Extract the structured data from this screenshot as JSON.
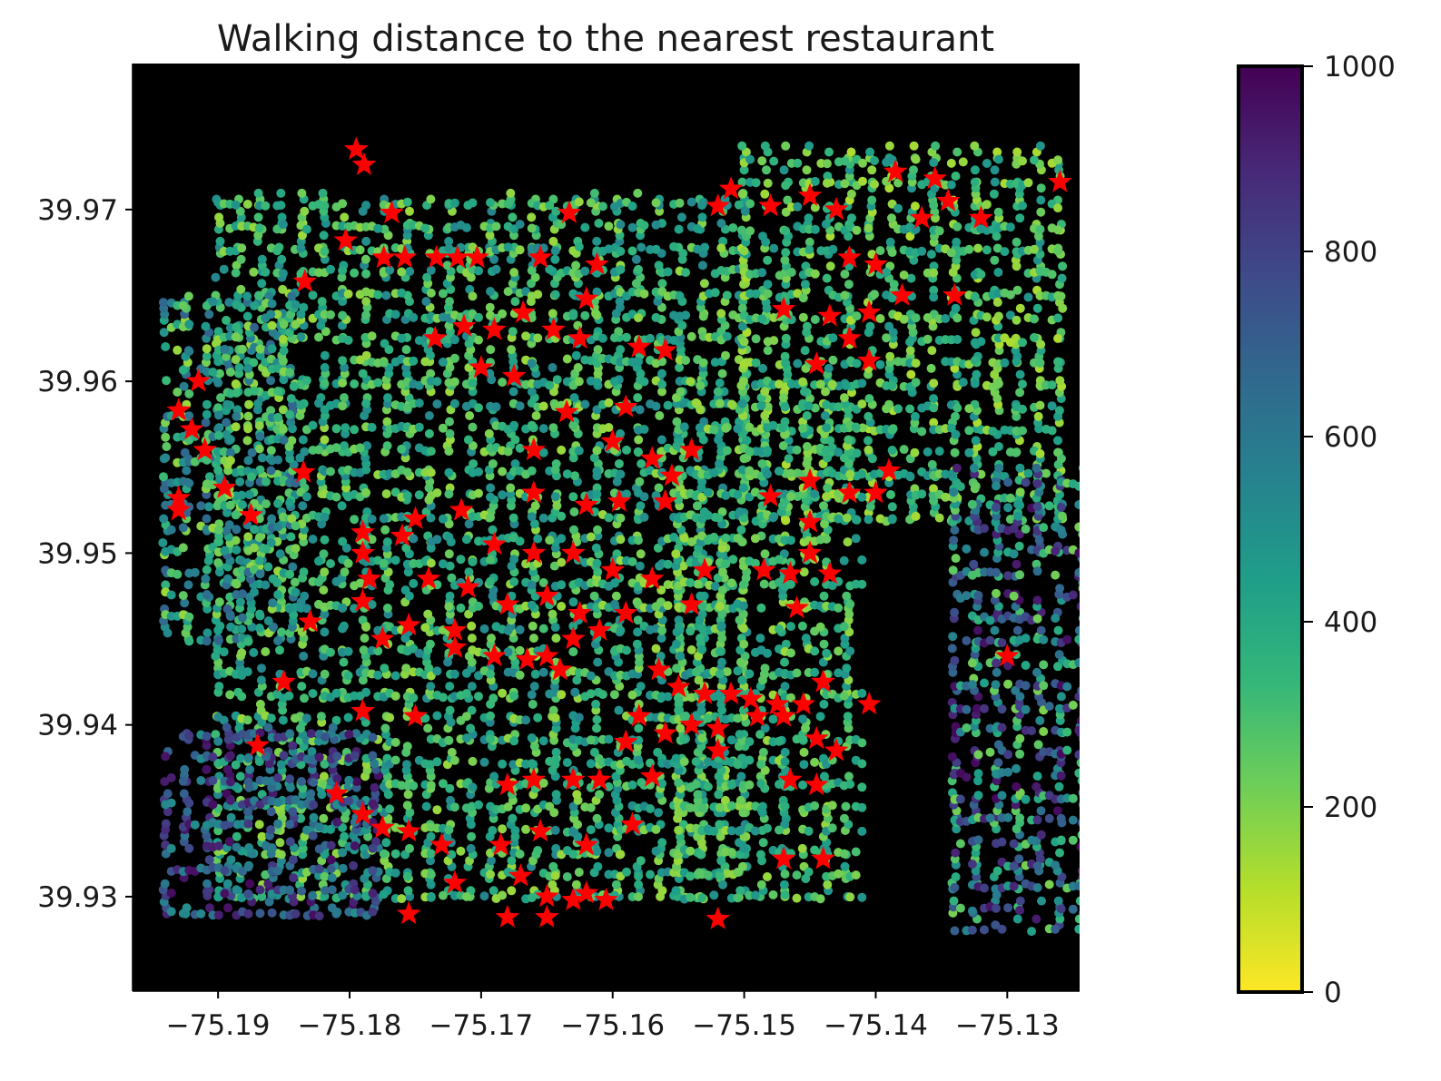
{
  "chart_data": {
    "type": "scatter",
    "title": "Walking distance to the nearest restaurant",
    "xlabel": "",
    "ylabel": "",
    "xlim": [
      -75.1965,
      -75.1245
    ],
    "ylim": [
      39.9245,
      39.9785
    ],
    "xticks": [
      -75.19,
      -75.18,
      -75.17,
      -75.16,
      -75.15,
      -75.14,
      -75.13
    ],
    "xtick_labels": [
      "−75.19",
      "−75.18",
      "−75.17",
      "−75.16",
      "−75.15",
      "−75.14",
      "−75.13"
    ],
    "yticks": [
      39.93,
      39.94,
      39.95,
      39.96,
      39.97
    ],
    "ytick_labels": [
      "39.93",
      "39.94",
      "39.95",
      "39.96",
      "39.97"
    ],
    "background": "#000000",
    "grid": false,
    "colorbar": {
      "colormap": "viridis_r",
      "range": [
        0,
        1000
      ],
      "ticks": [
        0,
        200,
        400,
        600,
        800,
        1000
      ],
      "tick_labels": [
        "0",
        "200",
        "400",
        "600",
        "800",
        "1000"
      ],
      "stops": [
        "#fde725",
        "#b5de2b",
        "#6ece58",
        "#35b779",
        "#1f9e89",
        "#26828e",
        "#31688e",
        "#3e4989",
        "#482878",
        "#440154"
      ]
    },
    "series": [
      {
        "kind": "walking-distance-points",
        "marker": "circle",
        "colormapped": true,
        "clusters": [
          {
            "x": [
              -75.19,
              -75.15
            ],
            "y": [
              39.93,
              39.971
            ],
            "distance": [
              150,
              550
            ]
          },
          {
            "x": [
              -75.15,
              -75.126
            ],
            "y": [
              39.952,
              39.974
            ],
            "distance": [
              120,
              500
            ]
          },
          {
            "x": [
              -75.155,
              -75.141
            ],
            "y": [
              39.93,
              39.96
            ],
            "distance": [
              150,
              500
            ]
          },
          {
            "x": [
              -75.194,
              -75.184
            ],
            "y": [
              39.945,
              39.965
            ],
            "distance": [
              150,
              700
            ]
          },
          {
            "x": [
              -75.194,
              -75.178
            ],
            "y": [
              39.929,
              39.94
            ],
            "distance": [
              500,
              980
            ]
          },
          {
            "x": [
              -75.134,
              -75.124
            ],
            "y": [
              39.928,
              39.955
            ],
            "distance": [
              200,
              980
            ]
          }
        ]
      },
      {
        "kind": "restaurants",
        "marker": "star",
        "color": "#ff0000",
        "points": [
          [
            -75.1795,
            39.9735
          ],
          [
            -75.1789,
            39.9726
          ],
          [
            -75.1768,
            39.9698
          ],
          [
            -75.1803,
            39.9682
          ],
          [
            -75.1774,
            39.9672
          ],
          [
            -75.1758,
            39.9672
          ],
          [
            -75.1734,
            39.9672
          ],
          [
            -75.1718,
            39.9672
          ],
          [
            -75.1703,
            39.9672
          ],
          [
            -75.1655,
            39.9672
          ],
          [
            -75.1633,
            39.9698
          ],
          [
            -75.1612,
            39.9668
          ],
          [
            -75.1834,
            39.9658
          ],
          [
            -75.1713,
            39.9632
          ],
          [
            -75.1735,
            39.9625
          ],
          [
            -75.169,
            39.963
          ],
          [
            -75.1668,
            39.964
          ],
          [
            -75.1645,
            39.963
          ],
          [
            -75.1625,
            39.9625
          ],
          [
            -75.17,
            39.9608
          ],
          [
            -75.1675,
            39.9603
          ],
          [
            -75.162,
            39.9648
          ],
          [
            -75.158,
            39.962
          ],
          [
            -75.156,
            39.9618
          ],
          [
            -75.1635,
            39.9582
          ],
          [
            -75.159,
            39.9585
          ],
          [
            -75.151,
            39.9712
          ],
          [
            -75.152,
            39.9702
          ],
          [
            -75.148,
            39.9702
          ],
          [
            -75.145,
            39.9708
          ],
          [
            -75.143,
            39.97
          ],
          [
            -75.1385,
            39.9722
          ],
          [
            -75.1365,
            39.9695
          ],
          [
            -75.1355,
            39.9718
          ],
          [
            -75.1345,
            39.9705
          ],
          [
            -75.132,
            39.9695
          ],
          [
            -75.126,
            39.9716
          ],
          [
            -75.142,
            39.9672
          ],
          [
            -75.14,
            39.9668
          ],
          [
            -75.138,
            39.965
          ],
          [
            -75.1405,
            39.964
          ],
          [
            -75.134,
            39.965
          ],
          [
            -75.147,
            39.9642
          ],
          [
            -75.1435,
            39.9638
          ],
          [
            -75.142,
            39.9625
          ],
          [
            -75.1405,
            39.9612
          ],
          [
            -75.1445,
            39.961
          ],
          [
            -75.1915,
            39.96
          ],
          [
            -75.193,
            39.9583
          ],
          [
            -75.192,
            39.9572
          ],
          [
            -75.191,
            39.956
          ],
          [
            -75.193,
            39.9532
          ],
          [
            -75.193,
            39.9525
          ],
          [
            -75.1895,
            39.9538
          ],
          [
            -75.1875,
            39.9522
          ],
          [
            -75.1835,
            39.9547
          ],
          [
            -75.166,
            39.956
          ],
          [
            -75.16,
            39.9565
          ],
          [
            -75.157,
            39.9555
          ],
          [
            -75.1555,
            39.9545
          ],
          [
            -75.156,
            39.953
          ],
          [
            -75.154,
            39.956
          ],
          [
            -75.1595,
            39.953
          ],
          [
            -75.162,
            39.9528
          ],
          [
            -75.166,
            39.9535
          ],
          [
            -75.1715,
            39.9525
          ],
          [
            -75.175,
            39.952
          ],
          [
            -75.179,
            39.9512
          ],
          [
            -75.176,
            39.951
          ],
          [
            -75.169,
            39.9505
          ],
          [
            -75.166,
            39.95
          ],
          [
            -75.163,
            39.95
          ],
          [
            -75.16,
            39.949
          ],
          [
            -75.157,
            39.9485
          ],
          [
            -75.153,
            39.949
          ],
          [
            -75.1485,
            39.949
          ],
          [
            -75.1465,
            39.9488
          ],
          [
            -75.145,
            39.95
          ],
          [
            -75.1435,
            39.9488
          ],
          [
            -75.146,
            39.9468
          ],
          [
            -75.148,
            39.9533
          ],
          [
            -75.145,
            39.9542
          ],
          [
            -75.142,
            39.9535
          ],
          [
            -75.14,
            39.9535
          ],
          [
            -75.139,
            39.9548
          ],
          [
            -75.145,
            39.9518
          ],
          [
            -75.179,
            39.95
          ],
          [
            -75.1785,
            39.9485
          ],
          [
            -75.179,
            39.9472
          ],
          [
            -75.174,
            39.9485
          ],
          [
            -75.171,
            39.948
          ],
          [
            -75.168,
            39.947
          ],
          [
            -75.165,
            39.9475
          ],
          [
            -75.1625,
            39.9465
          ],
          [
            -75.159,
            39.9465
          ],
          [
            -75.154,
            39.947
          ],
          [
            -75.1755,
            39.9458
          ],
          [
            -75.1775,
            39.945
          ],
          [
            -75.172,
            39.9455
          ],
          [
            -75.172,
            39.9445
          ],
          [
            -75.183,
            39.946
          ],
          [
            -75.185,
            39.9425
          ],
          [
            -75.169,
            39.944
          ],
          [
            -75.1665,
            39.9438
          ],
          [
            -75.165,
            39.944
          ],
          [
            -75.164,
            39.9432
          ],
          [
            -75.163,
            39.945
          ],
          [
            -75.161,
            39.9455
          ],
          [
            -75.1565,
            39.9432
          ],
          [
            -75.155,
            39.9422
          ],
          [
            -75.153,
            39.9418
          ],
          [
            -75.151,
            39.9418
          ],
          [
            -75.1495,
            39.9415
          ],
          [
            -75.1475,
            39.9412
          ],
          [
            -75.1455,
            39.9412
          ],
          [
            -75.144,
            39.9425
          ],
          [
            -75.1405,
            39.9412
          ],
          [
            -75.13,
            39.944
          ],
          [
            -75.179,
            39.9408
          ],
          [
            -75.175,
            39.9405
          ],
          [
            -75.187,
            39.9388
          ],
          [
            -75.158,
            39.9405
          ],
          [
            -75.156,
            39.9395
          ],
          [
            -75.154,
            39.94
          ],
          [
            -75.152,
            39.9398
          ],
          [
            -75.149,
            39.9405
          ],
          [
            -75.147,
            39.9405
          ],
          [
            -75.1445,
            39.9392
          ],
          [
            -75.143,
            39.9385
          ],
          [
            -75.159,
            39.939
          ],
          [
            -75.157,
            39.937
          ],
          [
            -75.161,
            39.9368
          ],
          [
            -75.163,
            39.9368
          ],
          [
            -75.166,
            39.9368
          ],
          [
            -75.168,
            39.9365
          ],
          [
            -75.1465,
            39.9368
          ],
          [
            -75.1445,
            39.9365
          ],
          [
            -75.152,
            39.9385
          ],
          [
            -75.181,
            39.936
          ],
          [
            -75.179,
            39.9348
          ],
          [
            -75.1775,
            39.934
          ],
          [
            -75.1755,
            39.9338
          ],
          [
            -75.173,
            39.933
          ],
          [
            -75.1685,
            39.933
          ],
          [
            -75.1655,
            39.9338
          ],
          [
            -75.162,
            39.933
          ],
          [
            -75.1585,
            39.9342
          ],
          [
            -75.147,
            39.9322
          ],
          [
            -75.144,
            39.9322
          ],
          [
            -75.172,
            39.9308
          ],
          [
            -75.167,
            39.9312
          ],
          [
            -75.165,
            39.93
          ],
          [
            -75.163,
            39.9298
          ],
          [
            -75.162,
            39.9302
          ],
          [
            -75.1605,
            39.9298
          ],
          [
            -75.165,
            39.9288
          ],
          [
            -75.168,
            39.9288
          ],
          [
            -75.152,
            39.9287
          ],
          [
            -75.1755,
            39.929
          ]
        ]
      }
    ]
  }
}
